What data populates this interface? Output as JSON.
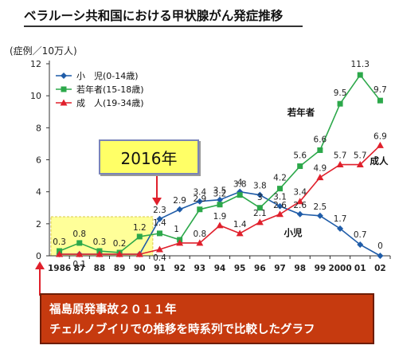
{
  "title": "ベラルーシ共和国における甲状腺がん発症推移",
  "unit_label": "(症例／10万人)",
  "callout_year": "2016年",
  "bottom_note": {
    "line1": "福島原発事故２０１１年",
    "line2": "チェルノブイリでの推移を時系列で比較したグラフ"
  },
  "colors": {
    "children": "#1f5ca8",
    "adolescents": "#2ca84a",
    "adults": "#e0202c",
    "highlight": "#ffff99",
    "note_bg": "#c63a0f"
  },
  "chart_data": {
    "type": "line",
    "categories": [
      "1986",
      "87",
      "88",
      "89",
      "90",
      "91",
      "92",
      "93",
      "94",
      "95",
      "96",
      "97",
      "98",
      "99",
      "2000",
      "01",
      "02"
    ],
    "ylim": [
      0,
      12
    ],
    "yticks": [
      "0",
      "2",
      "4",
      "6",
      "8",
      "10",
      "12"
    ],
    "grid": false,
    "legend_position": "top-left",
    "series": [
      {
        "name": "小　児(0-14歳)",
        "key": "children",
        "marker": "diamond",
        "values": [
          0.1,
          0.1,
          0.1,
          0.1,
          0.1,
          2.3,
          2.9,
          3.4,
          3.5,
          4.0,
          3.8,
          3.1,
          2.6,
          2.5,
          1.7,
          0.7,
          0.0
        ],
        "labels": [
          "",
          "",
          "",
          "",
          "",
          "2.3",
          "2.9",
          "3.4",
          "3.5",
          "4",
          "3.8",
          "3.1",
          "2.6",
          "2.5",
          "1.7",
          "0.7",
          "0"
        ]
      },
      {
        "name": "若年者(15-18歳)",
        "key": "adolescents",
        "marker": "square",
        "values": [
          0.3,
          0.8,
          0.3,
          0.2,
          1.2,
          1.4,
          1.0,
          2.9,
          3.2,
          3.8,
          3.0,
          4.2,
          5.6,
          6.6,
          9.5,
          11.3,
          9.7
        ],
        "labels": [
          "0.3",
          "0.8",
          "0.3",
          "0.2",
          "1.2",
          "1.4",
          "1",
          "2.9",
          "3.2",
          "3.8",
          "3",
          "4.2",
          "5.6",
          "6.6",
          "9.5",
          "11.3",
          "9.7"
        ]
      },
      {
        "name": "成　人(19-34歳)",
        "key": "adults",
        "marker": "triangle",
        "values": [
          0.1,
          0.1,
          0.1,
          0.1,
          0.1,
          0.4,
          0.8,
          0.8,
          1.9,
          1.4,
          2.1,
          2.6,
          3.4,
          4.9,
          5.7,
          5.7,
          6.9
        ],
        "labels": [
          "",
          "0.1",
          "",
          "",
          "",
          "0.4",
          "",
          "0.8",
          "1.9",
          "1.4",
          "2.1",
          "2.6",
          "3.4",
          "4.9",
          "5.7",
          "5.7",
          "6.9"
        ]
      }
    ],
    "annotations": {
      "adolescents_tag": "若年者",
      "adults_tag": "成人",
      "children_tag": "小児"
    }
  }
}
